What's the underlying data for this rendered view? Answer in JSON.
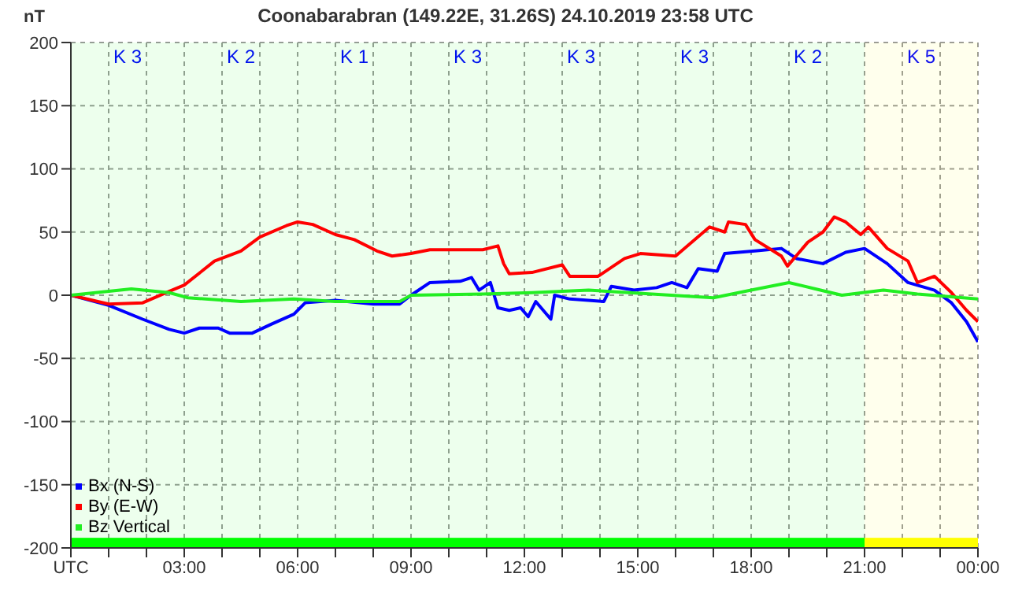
{
  "chart_data": {
    "type": "line",
    "title": "Coonabarabran (149.22E, 31.26S) 24.10.2019 23:58 UTC",
    "ylabel": "nT",
    "xlim": [
      0,
      24
    ],
    "xticks": [
      {
        "value": 0,
        "label": "UTC"
      },
      {
        "value": 1,
        "label": null
      },
      {
        "value": 2,
        "label": null
      },
      {
        "value": 3,
        "label": "03:00"
      },
      {
        "value": 4,
        "label": null
      },
      {
        "value": 5,
        "label": null
      },
      {
        "value": 6,
        "label": "06:00"
      },
      {
        "value": 7,
        "label": null
      },
      {
        "value": 8,
        "label": null
      },
      {
        "value": 9,
        "label": "09:00"
      },
      {
        "value": 10,
        "label": null
      },
      {
        "value": 11,
        "label": null
      },
      {
        "value": 12,
        "label": "12:00"
      },
      {
        "value": 13,
        "label": null
      },
      {
        "value": 14,
        "label": null
      },
      {
        "value": 15,
        "label": "15:00"
      },
      {
        "value": 16,
        "label": null
      },
      {
        "value": 17,
        "label": null
      },
      {
        "value": 18,
        "label": "18:00"
      },
      {
        "value": 19,
        "label": null
      },
      {
        "value": 20,
        "label": null
      },
      {
        "value": 21,
        "label": "21:00"
      },
      {
        "value": 22,
        "label": null
      },
      {
        "value": 23,
        "label": null
      },
      {
        "value": 24,
        "label": "00:00"
      }
    ],
    "ylim": [
      -200,
      200
    ],
    "yticks": [
      -200,
      -150,
      -100,
      -50,
      0,
      50,
      100,
      150,
      200
    ],
    "grid": true,
    "legend": "bottom left",
    "marker": "none",
    "line_style": "solid",
    "bands": [
      {
        "axis": "x",
        "from": 0,
        "to": 3,
        "label": "K 3",
        "color": "#00ff00"
      },
      {
        "axis": "x",
        "from": 3,
        "to": 6,
        "label": "K 2",
        "color": "#00ff00"
      },
      {
        "axis": "x",
        "from": 6,
        "to": 9,
        "label": "K 1",
        "color": "#00ff00"
      },
      {
        "axis": "x",
        "from": 9,
        "to": 12,
        "label": "K 3",
        "color": "#00ff00"
      },
      {
        "axis": "x",
        "from": 12,
        "to": 15,
        "label": "K 3",
        "color": "#00ff00"
      },
      {
        "axis": "x",
        "from": 15,
        "to": 18,
        "label": "K 3",
        "color": "#00ff00"
      },
      {
        "axis": "x",
        "from": 18,
        "to": 21,
        "label": "K 2",
        "color": "#00ff00"
      },
      {
        "axis": "x",
        "from": 21,
        "to": 24,
        "label": "K 5",
        "color": "#ffff00"
      }
    ],
    "series": [
      {
        "name": "Bx (N-S)",
        "color": "#0000ff",
        "x": [
          0,
          1,
          1.9,
          2.6,
          3,
          3.4,
          3.9,
          4.2,
          4.8,
          5.3,
          5.9,
          6.2,
          7,
          8,
          8.7,
          9,
          9.5,
          10.3,
          10.6,
          10.8,
          11.1,
          11.3,
          11.6,
          11.9,
          12.1,
          12.3,
          12.7,
          12.8,
          13.2,
          14.1,
          14.3,
          14.9,
          15.5,
          15.9,
          16.3,
          16.6,
          17.1,
          17.3,
          18.1,
          18.8,
          19.2,
          19.9,
          20.5,
          21,
          21.6,
          22.15,
          22.85,
          23.3,
          23.7,
          24
        ],
        "values": [
          0,
          -8,
          -19,
          -27,
          -30,
          -26,
          -26,
          -30,
          -30,
          -23,
          -15,
          -6,
          -4,
          -7,
          -7,
          0,
          10,
          11,
          14,
          4,
          10,
          -10,
          -12,
          -10,
          -17,
          -5,
          -19,
          0,
          -3,
          -5,
          7,
          4,
          6,
          10,
          6,
          21,
          19,
          33,
          35,
          37,
          29,
          25,
          34,
          37,
          25,
          10,
          4,
          -6,
          -21,
          -37
        ]
      },
      {
        "name": "By (E-W)",
        "color": "#ff0000",
        "x": [
          0,
          1,
          1.9,
          2.6,
          3,
          3.8,
          4.5,
          5,
          5.7,
          6,
          6.4,
          7,
          7.5,
          8.1,
          8.5,
          9,
          9.5,
          10.9,
          11.3,
          11.45,
          11.6,
          12.2,
          13,
          13.2,
          13.95,
          14.65,
          15.07,
          16,
          16.9,
          17.3,
          17.4,
          17.85,
          18.1,
          18.8,
          18.96,
          19.5,
          19.9,
          20.2,
          20.5,
          20.9,
          21.1,
          21.6,
          22.15,
          22.4,
          22.85,
          23.3,
          23.7,
          24
        ],
        "values": [
          0,
          -7,
          -6,
          3,
          8,
          27,
          35,
          46,
          55,
          58,
          56,
          48,
          44,
          35,
          31,
          33,
          36,
          36,
          39,
          25,
          17,
          18,
          24,
          15,
          15,
          29,
          33,
          31,
          54,
          50,
          58,
          56,
          44,
          31,
          23,
          42,
          50,
          62,
          58,
          48,
          54,
          37,
          27,
          10,
          15,
          2,
          -12,
          -21
        ]
      },
      {
        "name": "Bz Vertical",
        "color": "#22ee22",
        "x": [
          0,
          1.6,
          2.6,
          3.1,
          4.5,
          5.9,
          7,
          8.7,
          9,
          10.9,
          12.2,
          13.7,
          17,
          18,
          19,
          19.7,
          20.4,
          21.5,
          22.4,
          24
        ],
        "values": [
          0,
          5,
          2,
          -2,
          -5,
          -3,
          -5,
          -5,
          0,
          1,
          2,
          4,
          -2,
          4,
          10,
          5,
          0,
          4,
          1,
          -3
        ]
      }
    ]
  }
}
